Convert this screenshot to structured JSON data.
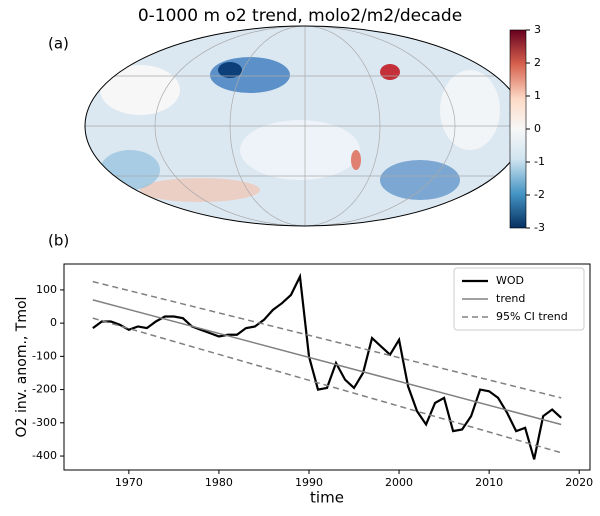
{
  "chart_data": [
    {
      "type": "map",
      "title": "0-1000 m o2 trend, molo2/m2/decade",
      "panel_label": "(a)",
      "colorbar": {
        "lim": [
          -3,
          3
        ],
        "ticks": [
          -3,
          -2,
          -1,
          0,
          1,
          2,
          3
        ]
      }
    },
    {
      "type": "line",
      "panel_label": "(b)",
      "xlabel": "time",
      "ylabel": "O2 inv. anom., Tmol",
      "x": [
        1966,
        1967,
        1968,
        1969,
        1970,
        1971,
        1972,
        1973,
        1974,
        1975,
        1976,
        1977,
        1978,
        1979,
        1980,
        1981,
        1982,
        1983,
        1984,
        1985,
        1986,
        1987,
        1988,
        1989,
        1990,
        1991,
        1992,
        1993,
        1994,
        1995,
        1996,
        1997,
        1998,
        1999,
        2000,
        2001,
        2002,
        2003,
        2004,
        2005,
        2006,
        2007,
        2008,
        2009,
        2010,
        2011,
        2012,
        2013,
        2014,
        2015,
        2016,
        2017,
        2018
      ],
      "series": [
        {
          "name": "WOD",
          "color": "#000000",
          "values": [
            -15,
            5,
            5,
            -5,
            -20,
            -10,
            -15,
            5,
            20,
            20,
            15,
            -10,
            -20,
            -30,
            -40,
            -35,
            -35,
            -15,
            -10,
            10,
            40,
            60,
            85,
            140,
            -100,
            -200,
            -195,
            -120,
            -170,
            -195,
            -150,
            -45,
            -70,
            -95,
            -50,
            -190,
            -265,
            -305,
            -240,
            -225,
            -325,
            -320,
            -280,
            -200,
            -205,
            -225,
            -270,
            -325,
            -315,
            -410,
            -280,
            -260,
            -285
          ]
        },
        {
          "name": "trend",
          "color": "#808080",
          "x": [
            1966,
            2018
          ],
          "values": [
            70,
            -305
          ]
        },
        {
          "name": "95% CI trend",
          "color": "#808080",
          "dash": true,
          "x": [
            1966,
            2018
          ],
          "upper": [
            125,
            -225
          ],
          "lower": [
            15,
            -390
          ]
        }
      ],
      "xlim": [
        1962.8,
        2021.2
      ],
      "xticks": [
        1970,
        1980,
        1990,
        2000,
        2010,
        2020
      ],
      "ylim": [
        -442,
        178
      ],
      "yticks": [
        -400,
        -300,
        -200,
        -100,
        0,
        100
      ],
      "legend": "upper right"
    }
  ]
}
